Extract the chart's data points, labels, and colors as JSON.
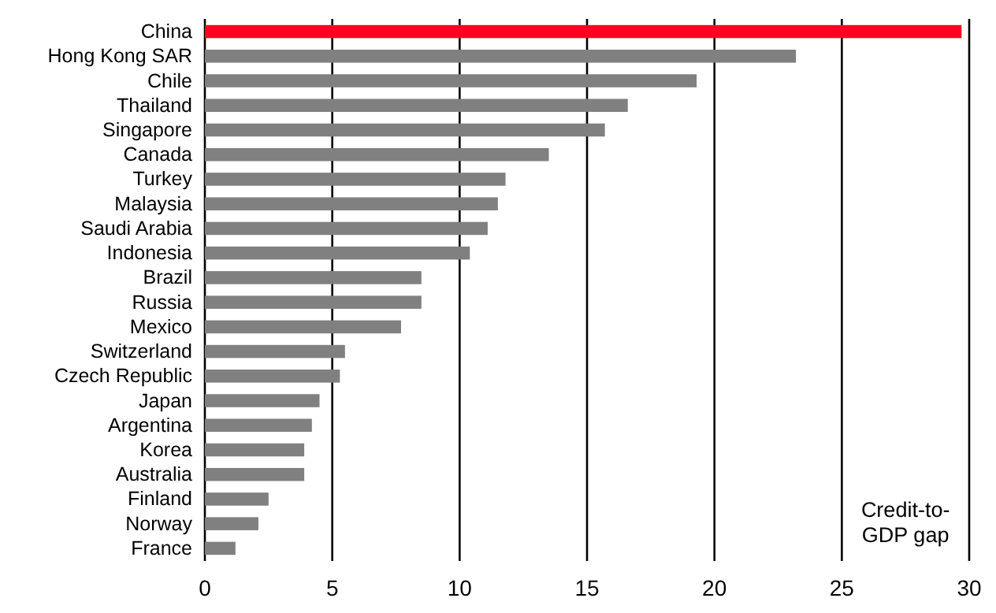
{
  "chart_data": {
    "type": "bar",
    "orientation": "horizontal",
    "categories": [
      "China",
      "Hong Kong SAR",
      "Chile",
      "Thailand",
      "Singapore",
      "Canada",
      "Turkey",
      "Malaysia",
      "Saudi Arabia",
      "Indonesia",
      "Brazil",
      "Russia",
      "Mexico",
      "Switzerland",
      "Czech Republic",
      "Japan",
      "Argentina",
      "Korea",
      "Australia",
      "Finland",
      "Norway",
      "France"
    ],
    "values": [
      29.7,
      23.2,
      19.3,
      16.6,
      15.7,
      13.5,
      11.8,
      11.5,
      11.1,
      10.4,
      8.5,
      8.5,
      7.7,
      5.5,
      5.3,
      4.5,
      4.2,
      3.9,
      3.9,
      2.5,
      2.1,
      1.2
    ],
    "colors": [
      "#ff0022",
      "#808080",
      "#808080",
      "#808080",
      "#808080",
      "#808080",
      "#808080",
      "#808080",
      "#808080",
      "#808080",
      "#808080",
      "#808080",
      "#808080",
      "#808080",
      "#808080",
      "#808080",
      "#808080",
      "#808080",
      "#808080",
      "#808080",
      "#808080",
      "#808080"
    ],
    "xlabel": "Credit-to-GDP gap",
    "xlim": [
      0,
      30
    ],
    "xticks": [
      0,
      5,
      10,
      15,
      20,
      25,
      30
    ],
    "grid": "x"
  }
}
